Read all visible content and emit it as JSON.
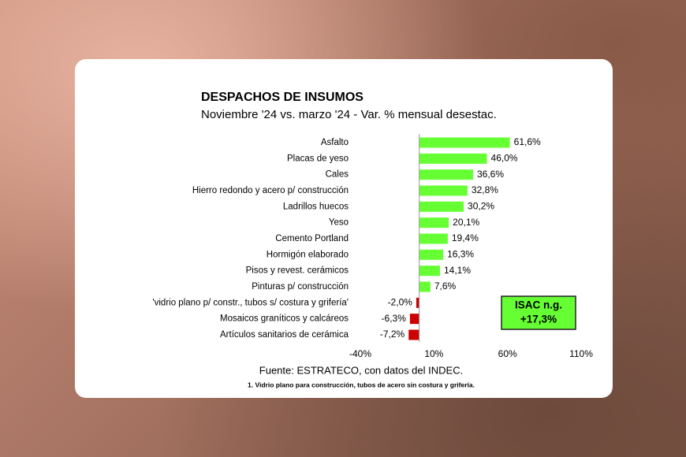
{
  "chart_data": {
    "type": "hbar",
    "title": "DESPACHOS DE INSUMOS",
    "subtitle": "Noviembre '24 vs. marzo '24 - Var. % mensual desestac.",
    "categories": [
      "Asfalto",
      "Placas de yeso",
      "Cales",
      "Hierro redondo y acero p/ construcción",
      "Ladrillos huecos",
      "Yeso",
      "Cemento Portland",
      "Hormigón elaborado",
      "Pisos y revest. cerámicos",
      "Pinturas p/ construcción",
      "'vidrio plano p/ constr., tubos s/ costura y grifería'",
      "Mosaicos graníticos y calcáreos",
      "Artículos sanitarios de cerámica"
    ],
    "values": [
      61.6,
      46.0,
      36.6,
      32.8,
      30.2,
      20.1,
      19.4,
      16.3,
      14.1,
      7.6,
      -2.0,
      -6.3,
      -7.2
    ],
    "value_labels": [
      "61,6%",
      "46,0%",
      "36,6%",
      "32,8%",
      "30,2%",
      "20,1%",
      "19,4%",
      "16,3%",
      "14,1%",
      "7,6%",
      "-2,0%",
      "-6,3%",
      "-7,2%"
    ],
    "color": "#66ff33",
    "negative_color": "#cc0000",
    "xlim": [
      -40,
      110
    ],
    "xticks": [
      {
        "value": -40,
        "label": "-40%"
      },
      {
        "value": 10,
        "label": "10%"
      },
      {
        "value": 60,
        "label": "60%"
      },
      {
        "value": 110,
        "label": "110%"
      }
    ],
    "grid": false,
    "annotation": [
      "ISAC n.g.",
      "+17,3%"
    ],
    "source": "Fuente: ESTRATECO, con datos del INDEC.",
    "footnote": "1. Vidrio plano para construcción, tubos de acero sin costura y grifería."
  }
}
